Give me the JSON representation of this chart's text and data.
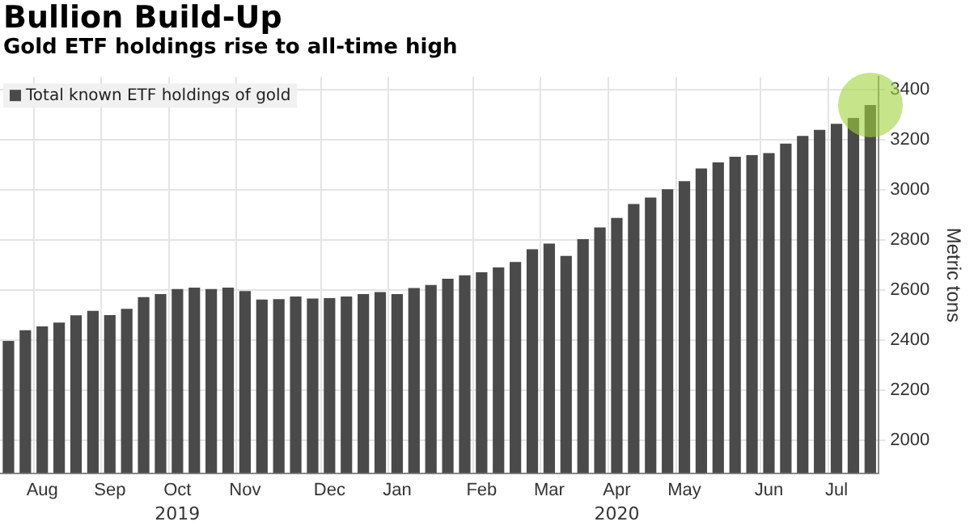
{
  "chart_data": {
    "type": "bar",
    "title": "Bullion Build-Up",
    "subtitle": "Gold ETF holdings rise to all-time high",
    "ylabel": "Metric tons",
    "categories": [
      null,
      null,
      "Aug",
      null,
      null,
      null,
      "Sep",
      null,
      null,
      null,
      "Oct",
      null,
      null,
      null,
      "Nov",
      null,
      null,
      null,
      null,
      "Dec",
      null,
      null,
      null,
      "Jan",
      null,
      null,
      null,
      null,
      "Feb",
      null,
      null,
      null,
      "Mar",
      null,
      null,
      null,
      "Apr",
      null,
      null,
      null,
      "May",
      null,
      null,
      null,
      null,
      "Jun",
      null,
      null,
      null,
      "Jul",
      null,
      null
    ],
    "series": [
      {
        "name": "Total known ETF holdings of gold",
        "color": "#4a4a4a",
        "values": [
          2397,
          2440,
          2455,
          2470,
          2499,
          2517,
          2500,
          2525,
          2572,
          2584,
          2604,
          2610,
          2604,
          2610,
          2596,
          2562,
          2564,
          2574,
          2566,
          2568,
          2574,
          2584,
          2592,
          2584,
          2608,
          2620,
          2645,
          2659,
          2671,
          2690,
          2712,
          2763,
          2785,
          2736,
          2803,
          2850,
          2888,
          2943,
          2969,
          3002,
          3034,
          3085,
          3109,
          3132,
          3138,
          3146,
          3184,
          3215,
          3239,
          3263,
          3286,
          3338
        ]
      }
    ],
    "annotations": [
      {
        "text": "2019",
        "x": "Oct"
      },
      {
        "text": "2020",
        "x": "Apr"
      }
    ],
    "ylim": [
      1870,
      3450
    ],
    "yticks": [
      2000,
      2200,
      2400,
      2600,
      2800,
      3000,
      3200,
      3400
    ],
    "grid": true,
    "legend": "top left"
  }
}
